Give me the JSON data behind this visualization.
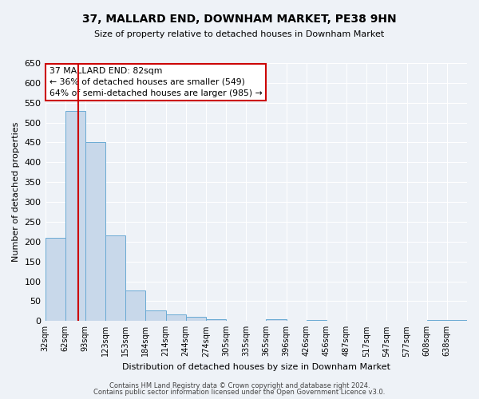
{
  "title": "37, MALLARD END, DOWNHAM MARKET, PE38 9HN",
  "subtitle": "Size of property relative to detached houses in Downham Market",
  "xlabel": "Distribution of detached houses by size in Downham Market",
  "ylabel": "Number of detached properties",
  "bin_labels": [
    "32sqm",
    "62sqm",
    "93sqm",
    "123sqm",
    "153sqm",
    "184sqm",
    "214sqm",
    "244sqm",
    "274sqm",
    "305sqm",
    "335sqm",
    "365sqm",
    "396sqm",
    "426sqm",
    "456sqm",
    "487sqm",
    "517sqm",
    "547sqm",
    "577sqm",
    "608sqm",
    "638sqm"
  ],
  "bar_values": [
    210,
    530,
    450,
    215,
    78,
    27,
    17,
    10,
    5,
    0,
    0,
    5,
    0,
    3,
    0,
    0,
    0,
    1,
    0,
    3,
    2
  ],
  "bar_color": "#c8d8ea",
  "bar_edge_color": "#6aaad4",
  "vline_x": 82,
  "vline_color": "#cc0000",
  "ylim": [
    0,
    650
  ],
  "yticks": [
    0,
    50,
    100,
    150,
    200,
    250,
    300,
    350,
    400,
    450,
    500,
    550,
    600,
    650
  ],
  "annotation_title": "37 MALLARD END: 82sqm",
  "annotation_line1": "← 36% of detached houses are smaller (549)",
  "annotation_line2": "64% of semi-detached houses are larger (985) →",
  "annotation_box_color": "#cc0000",
  "footer_line1": "Contains HM Land Registry data © Crown copyright and database right 2024.",
  "footer_line2": "Contains public sector information licensed under the Open Government Licence v3.0.",
  "background_color": "#eef2f7",
  "grid_color": "#ffffff"
}
